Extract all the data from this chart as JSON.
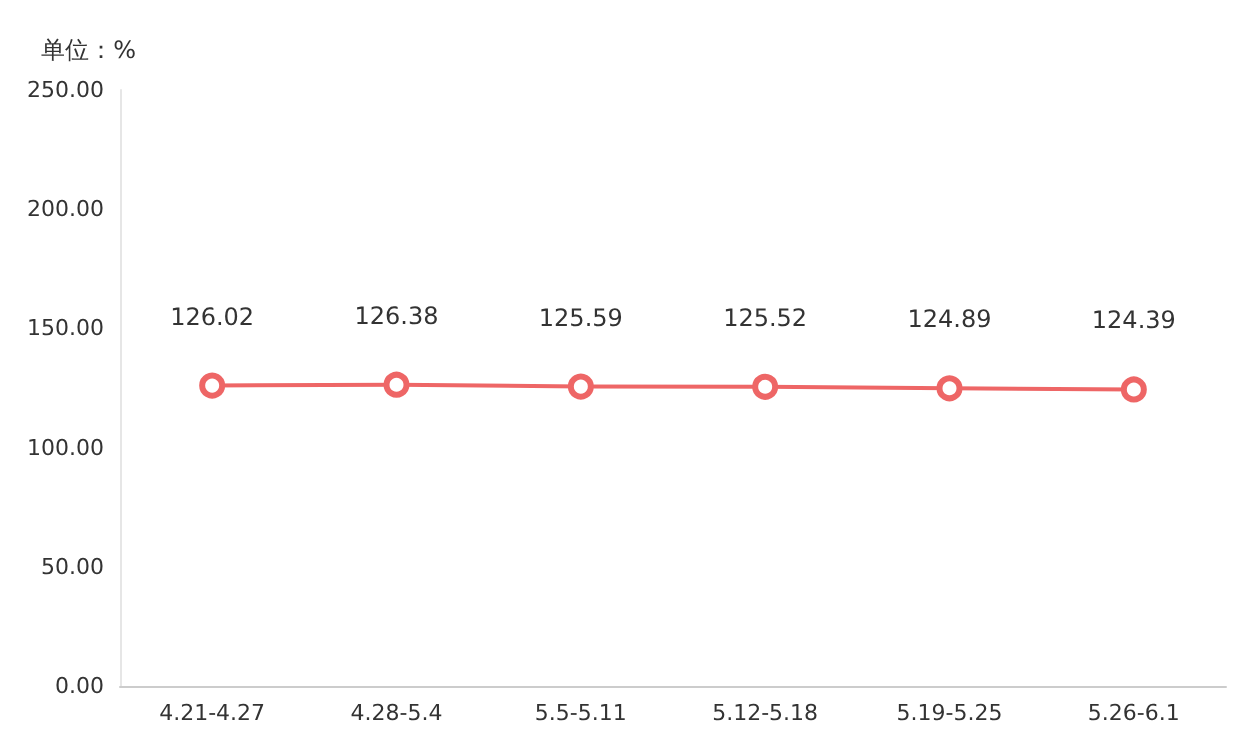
{
  "chart_data": {
    "type": "line",
    "ylabel": "单位：%",
    "categories": [
      "4.21-4.27",
      "4.28-5.4",
      "5.5-5.11",
      "5.12-5.18",
      "5.19-5.25",
      "5.26-6.1"
    ],
    "series": [
      {
        "color": "#ee6666",
        "values": [
          126.02,
          126.38,
          125.59,
          125.52,
          124.89,
          124.39
        ]
      }
    ],
    "ylim": [
      0,
      250
    ],
    "yticks": [
      {
        "value": 0,
        "label": "0.00"
      },
      {
        "value": 50,
        "label": "50.00"
      },
      {
        "value": 100,
        "label": "100.00"
      },
      {
        "value": 150,
        "label": "150.00"
      },
      {
        "value": 200,
        "label": "200.00"
      },
      {
        "value": 250,
        "label": "250.00"
      }
    ],
    "grid": false,
    "marker": "circle",
    "line_style": "solid",
    "data_labels": true
  }
}
